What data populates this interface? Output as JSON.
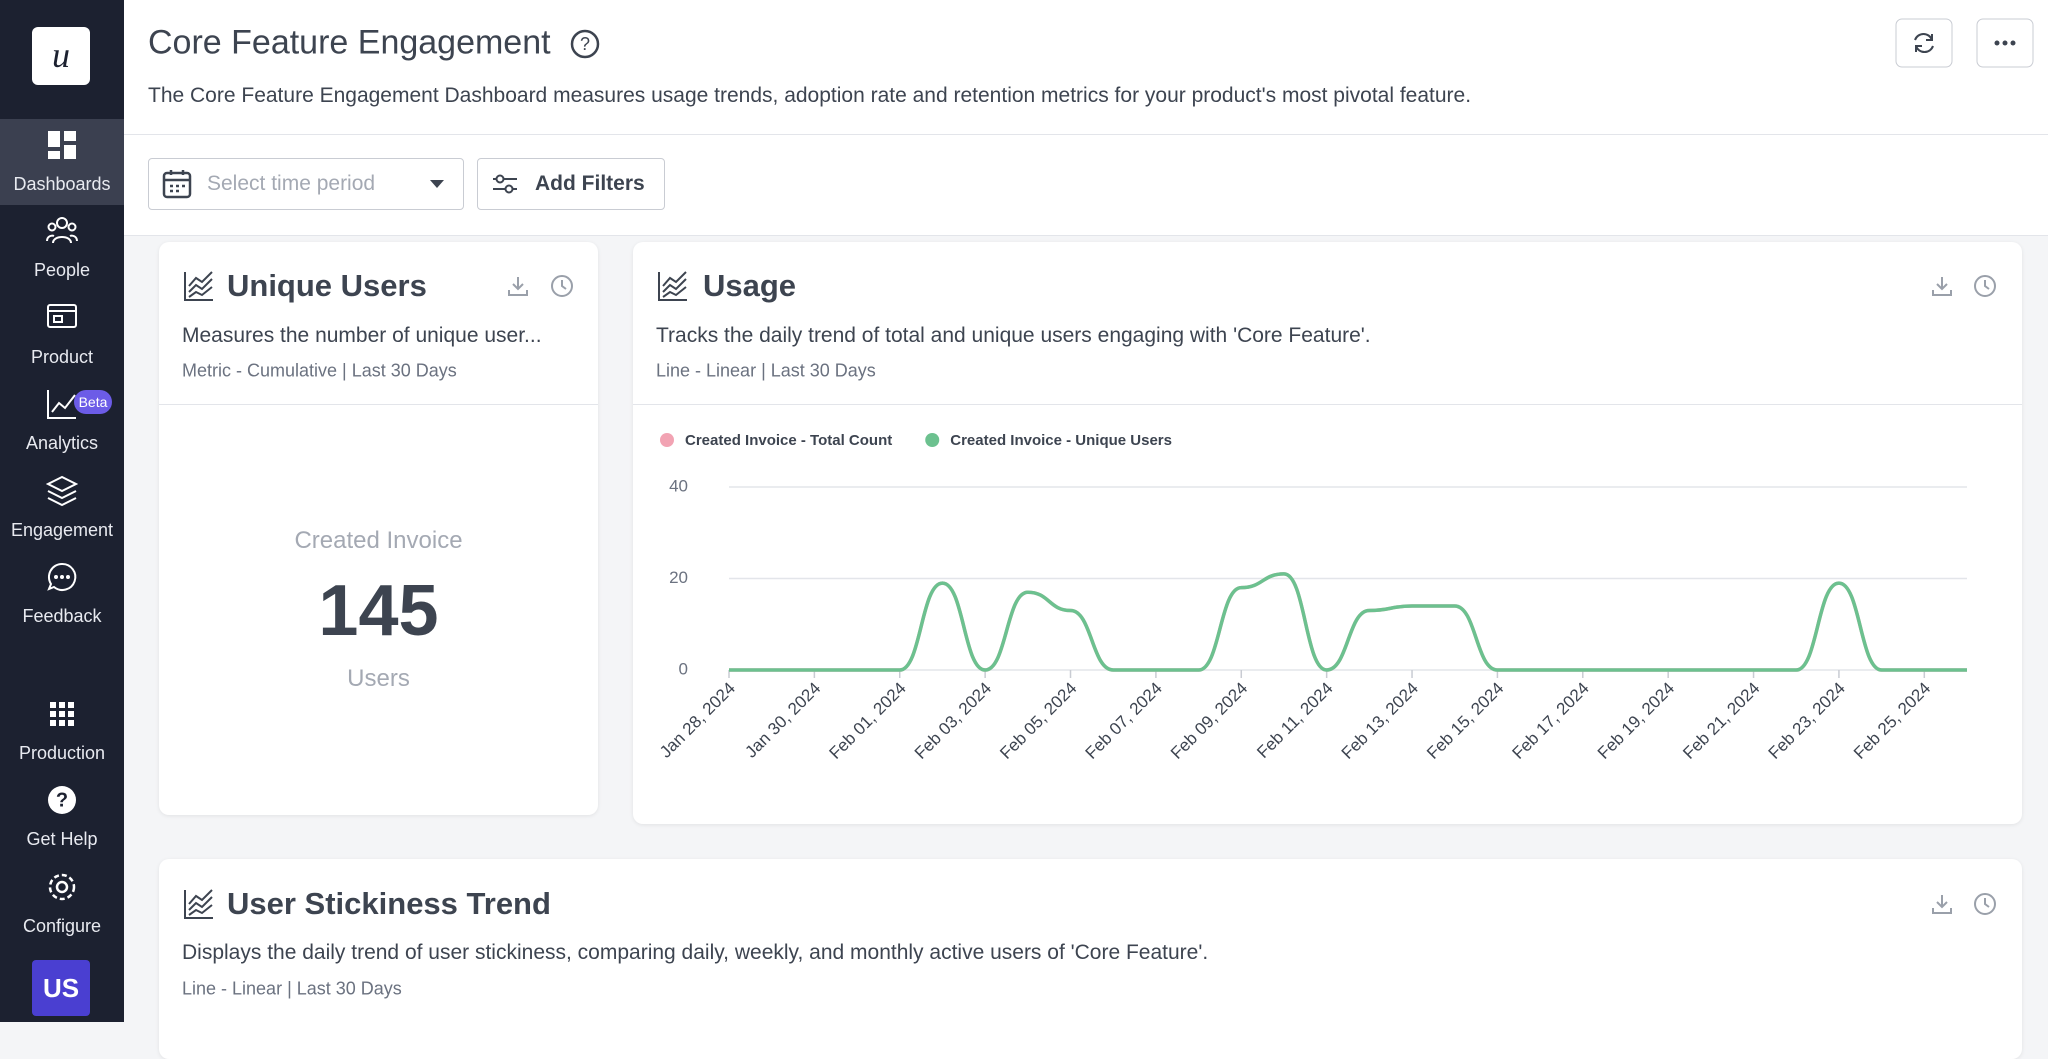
{
  "sidebar": {
    "logo": "u",
    "items": [
      "Dashboards",
      "People",
      "Product",
      "Analytics",
      "Engagement",
      "Feedback",
      "Production",
      "Get Help",
      "Configure"
    ],
    "badge": "Beta",
    "avatar": "US"
  },
  "header": {
    "title": "Core Feature Engagement",
    "description": "The Core Feature Engagement Dashboard measures usage trends, adoption rate and retention metrics for your product's most pivotal feature."
  },
  "filters": {
    "time_placeholder": "Select time period",
    "add_filters": "Add Filters"
  },
  "cards": [
    {
      "title": "Unique Users",
      "description": "Measures the number of unique user...",
      "meta": "Metric - Cumulative | Last 30 Days",
      "metric_label": "Created Invoice",
      "metric_value": 145,
      "metric_unit": "Users"
    },
    {
      "title": "Usage",
      "description": "Tracks the daily trend of total and unique users engaging with 'Core Feature'.",
      "meta": "Line - Linear | Last 30 Days"
    },
    {
      "title": "User Stickiness Trend",
      "description": "Displays the daily trend of user stickiness, comparing daily, weekly, and monthly active users of 'Core Feature'.",
      "meta": "Line - Linear | Last 30 Days"
    }
  ],
  "chart_data": {
    "type": "line",
    "categories": [
      "Jan 28, 2024",
      null,
      "Jan 30, 2024",
      null,
      "Feb 01, 2024",
      null,
      "Feb 03, 2024",
      null,
      "Feb 05, 2024",
      null,
      "Feb 07, 2024",
      null,
      "Feb 09, 2024",
      null,
      "Feb 11, 2024",
      null,
      "Feb 13, 2024",
      null,
      "Feb 15, 2024",
      null,
      "Feb 17, 2024",
      null,
      "Feb 19, 2024",
      null,
      "Feb 21, 2024",
      null,
      "Feb 23, 2024",
      null,
      "Feb 25, 2024",
      null
    ],
    "series": [
      {
        "name": "Created Invoice - Total Count",
        "color": "#f2a3b3",
        "values": [
          0,
          0,
          0,
          0,
          0,
          19,
          0,
          17,
          13,
          0,
          0,
          0,
          18,
          21,
          0,
          13,
          14,
          14,
          0,
          0,
          0,
          0,
          0,
          0,
          0,
          0,
          19,
          0,
          0,
          0
        ]
      },
      {
        "name": "Created Invoice - Unique Users",
        "color": "#6cc18f",
        "values": [
          0,
          0,
          0,
          0,
          0,
          19,
          0,
          17,
          13,
          0,
          0,
          0,
          18,
          21,
          0,
          13,
          14,
          14,
          0,
          0,
          0,
          0,
          0,
          0,
          0,
          0,
          19,
          0,
          0,
          0
        ]
      }
    ],
    "ylim": [
      0,
      40
    ],
    "yticks": [
      0,
      20,
      40
    ],
    "grid": true
  }
}
